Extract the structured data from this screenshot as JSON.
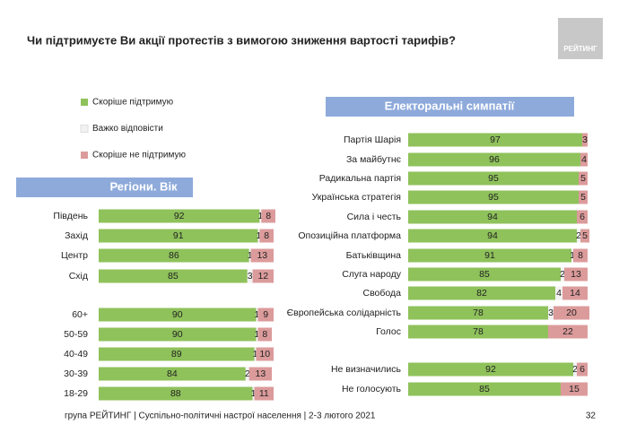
{
  "title": "Чи підтримуєте Ви акції протестів з вимогою зниження вартості тарифів?",
  "logo": "РЕЙТИНГ",
  "footer": "група РЕЙТИНГ | Суспільно-політичні настрої населення  | 2-3 лютого 2021",
  "page_number": "32",
  "chart_data": {
    "type": "bar",
    "stacked": true,
    "orientation": "horizontal",
    "xlim": [
      0,
      100
    ],
    "series": [
      {
        "name": "Скоріше  підтримую",
        "color": "#8fc25b"
      },
      {
        "name": "Важко відповісти",
        "color": "#f2f2f2"
      },
      {
        "name": "Скоріше  не підтримую",
        "color": "#dc9b9b"
      }
    ],
    "panels": [
      {
        "title": "Регіони. Вік",
        "categories": [
          "Південь",
          "Захід",
          "Центр",
          "Схід",
          null,
          "60+",
          "50-59",
          "40-49",
          "30-39",
          "18-29"
        ],
        "series": [
          {
            "values": [
              92,
              91,
              86,
              85,
              null,
              90,
              90,
              89,
              84,
              88
            ]
          },
          {
            "values": [
              1,
              1,
              1,
              3,
              null,
              1,
              1,
              1,
              2,
              1
            ]
          },
          {
            "values": [
              8,
              8,
              13,
              12,
              null,
              9,
              8,
              10,
              13,
              11
            ]
          }
        ]
      },
      {
        "title": "Електоральні симпатії",
        "categories": [
          "Партія Шарія",
          "За майбутнє",
          "Радикальна партія",
          "Українська стратегія",
          "Сила і честь",
          "Опозиційна платформа",
          "Батьківщина",
          "Слуга народу",
          "Свобода",
          "Європейська солідарність",
          "Голос",
          null,
          "Не визначились",
          "Не голосують"
        ],
        "series": [
          {
            "values": [
              97,
              96,
              95,
              95,
              94,
              94,
              91,
              85,
              82,
              78,
              78,
              null,
              92,
              85
            ]
          },
          {
            "values": [
              null,
              null,
              null,
              null,
              null,
              2,
              1,
              2,
              4,
              3,
              null,
              null,
              2,
              null
            ]
          },
          {
            "values": [
              3,
              4,
              5,
              5,
              6,
              5,
              8,
              13,
              14,
              20,
              22,
              null,
              6,
              15
            ]
          }
        ]
      }
    ]
  }
}
